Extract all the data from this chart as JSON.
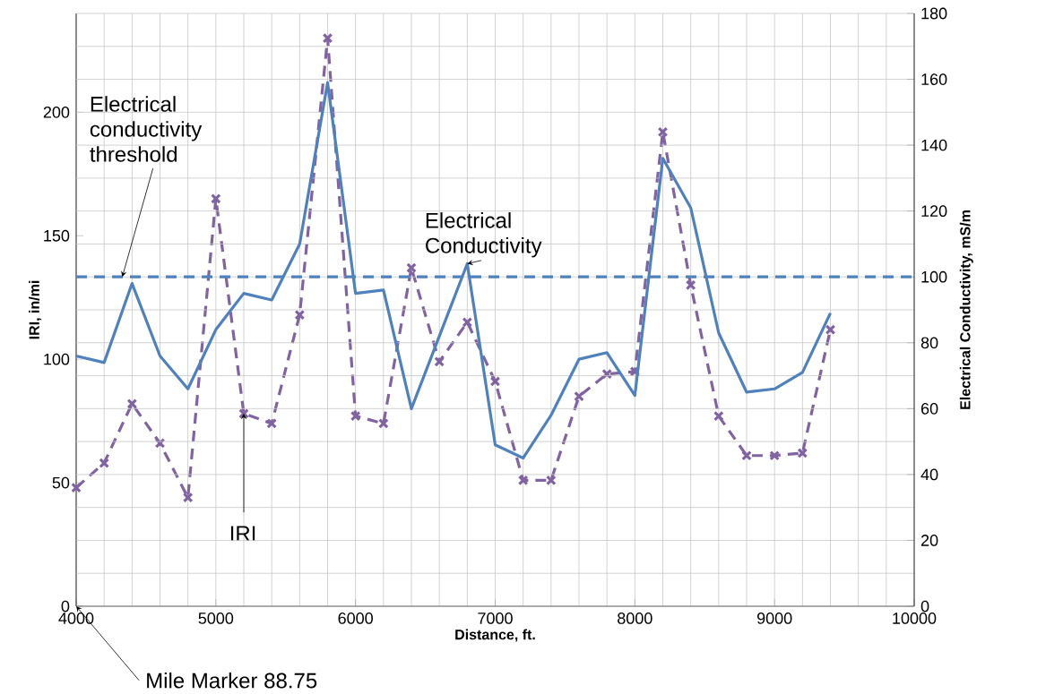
{
  "chart_data": {
    "type": "line",
    "xlabel": "Distance, ft.",
    "ylabel": "IRI, in/mi",
    "y2label": "Electrical Conductivity, mS/m",
    "x": [
      4000,
      4200,
      4400,
      4600,
      4800,
      5000,
      5200,
      5400,
      5600,
      5800,
      6000,
      6200,
      6400,
      6600,
      6800,
      7000,
      7200,
      7400,
      7600,
      7800,
      8000,
      8200,
      8400,
      8600,
      8800,
      9000,
      9200,
      9400
    ],
    "series": [
      {
        "name": "Electrical Conductivity",
        "color": "#4f81bd",
        "axis": "y2",
        "line_style": "solid",
        "marker": "none",
        "values": [
          76,
          74,
          98,
          76,
          66,
          84,
          95,
          93,
          110,
          159,
          95,
          96,
          60,
          82,
          104,
          49,
          45,
          58,
          75,
          77,
          64,
          136,
          121,
          83,
          65,
          66,
          71,
          89
        ]
      },
      {
        "name": "IRI",
        "color": "#8064a2",
        "line_style": "dashed",
        "marker": "cross",
        "values": [
          48,
          58,
          82,
          66,
          44,
          165,
          78,
          74,
          118,
          230,
          77,
          74,
          137,
          99,
          115,
          91,
          51,
          51,
          85,
          94,
          95,
          192,
          130,
          77,
          61,
          61,
          62,
          112
        ]
      }
    ],
    "xlim": [
      4000,
      10000
    ],
    "xticks": [
      4000,
      5000,
      6000,
      7000,
      8000,
      9000,
      10000
    ],
    "ylim": [
      0,
      240
    ],
    "yticks": [
      0,
      50,
      100,
      150,
      200
    ],
    "y2lim": [
      0,
      180
    ],
    "y2ticks": [
      0,
      20,
      40,
      60,
      80,
      100,
      120,
      140,
      160,
      180
    ],
    "ref_lines": [
      {
        "axis": "y2",
        "value": 100,
        "label": "Electrical conductivity threshold",
        "color": "#4f81bd",
        "line_style": "dashed"
      }
    ],
    "annotations": [
      "Mile Marker 88.75"
    ],
    "grid": true
  }
}
